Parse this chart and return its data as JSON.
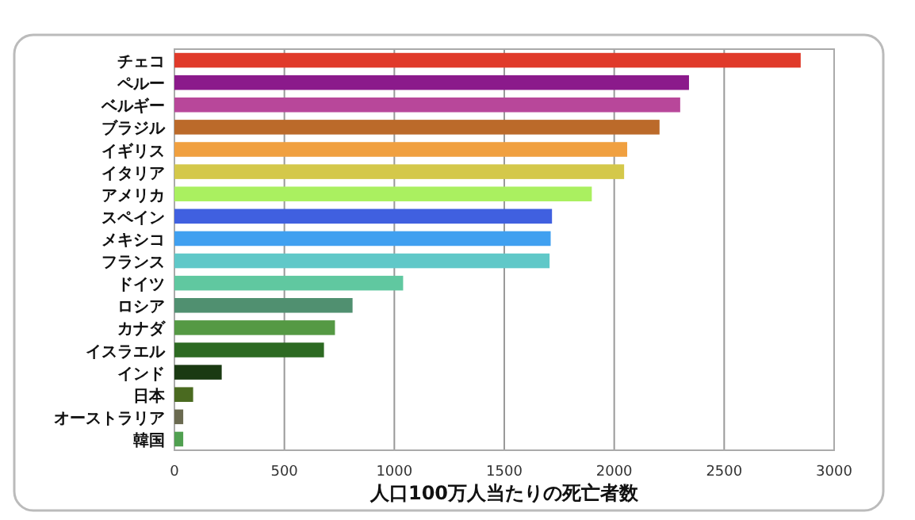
{
  "chart_data": {
    "type": "bar",
    "orientation": "horizontal",
    "xlabel": "人口100万人当たりの死亡者数",
    "categories": [
      "チェコ",
      "ペルー",
      "ベルギー",
      "ブラジル",
      "イギリス",
      "イタリア",
      "アメリカ",
      "スペイン",
      "メキシコ",
      "フランス",
      "ドイツ",
      "ロシア",
      "カナダ",
      "イスラエル",
      "インド",
      "日本",
      "オーストラリア",
      "韓国"
    ],
    "values": [
      2848,
      2340,
      2300,
      2206,
      2059,
      2045,
      1898,
      1717,
      1711,
      1706,
      1040,
      810,
      730,
      680,
      215,
      85,
      40,
      40
    ],
    "colors": [
      "#e03a2a",
      "#8b1a8b",
      "#b8479a",
      "#bb6a2a",
      "#f0a040",
      "#d4c84a",
      "#aaf060",
      "#4060e0",
      "#40a0f0",
      "#60c8c8",
      "#60c8a0",
      "#509070",
      "#559944",
      "#2d6a22",
      "#1a3a12",
      "#4a6a20",
      "#6a6a50",
      "#50a050"
    ],
    "xlim": [
      0,
      3000
    ],
    "xticks": [
      0,
      500,
      1000,
      1500,
      2000,
      2500,
      3000
    ],
    "grid": "x"
  }
}
